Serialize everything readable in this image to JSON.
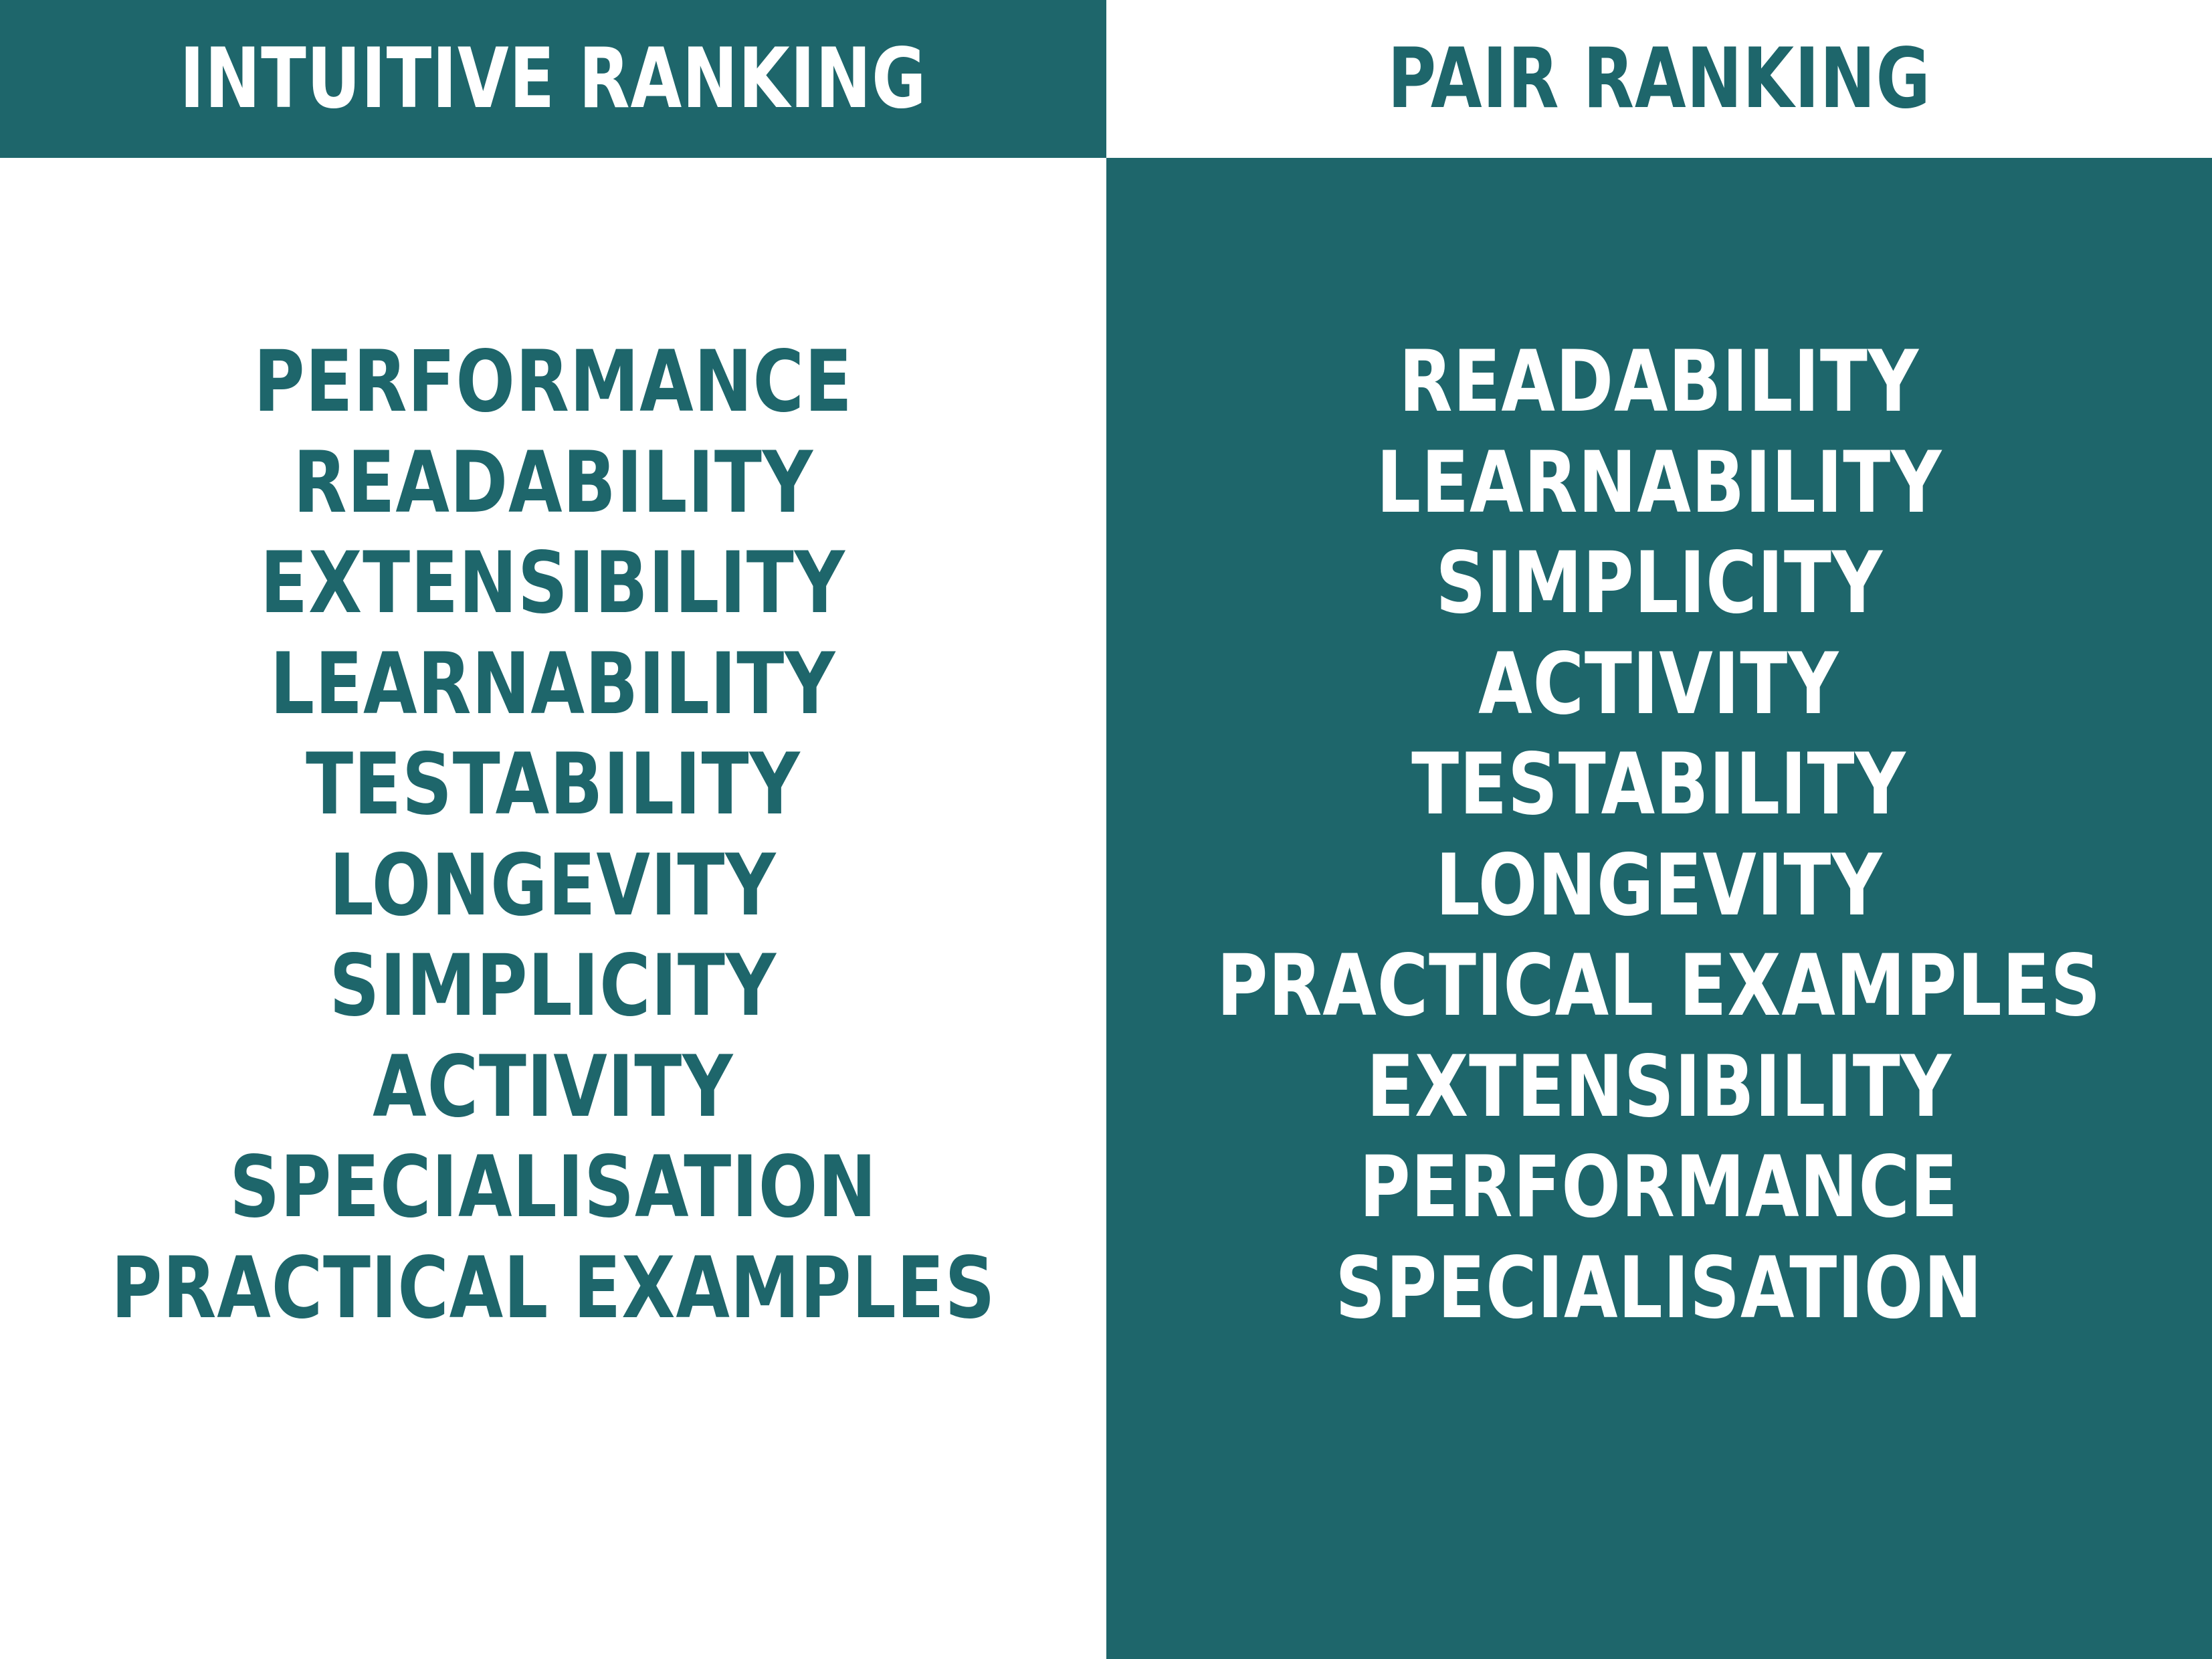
{
  "colors": {
    "teal": "#1e666b",
    "white": "#ffffff"
  },
  "intuitive_ranking": {
    "title": "INTUITIVE RANKING",
    "items": [
      "PERFORMANCE",
      "READABILITY",
      "EXTENSIBILITY",
      "LEARNABILITY",
      "TESTABILITY",
      "LONGEVITY",
      "SIMPLICITY",
      "ACTIVITY",
      "SPECIALISATION",
      "PRACTICAL EXAMPLES"
    ]
  },
  "pair_ranking": {
    "title": "PAIR RANKING",
    "items": [
      "READABILITY",
      "LEARNABILITY",
      "SIMPLICITY",
      "ACTIVITY",
      "TESTABILITY",
      "LONGEVITY",
      "PRACTICAL EXAMPLES",
      "EXTENSIBILITY",
      "PERFORMANCE",
      "SPECIALISATION"
    ]
  }
}
